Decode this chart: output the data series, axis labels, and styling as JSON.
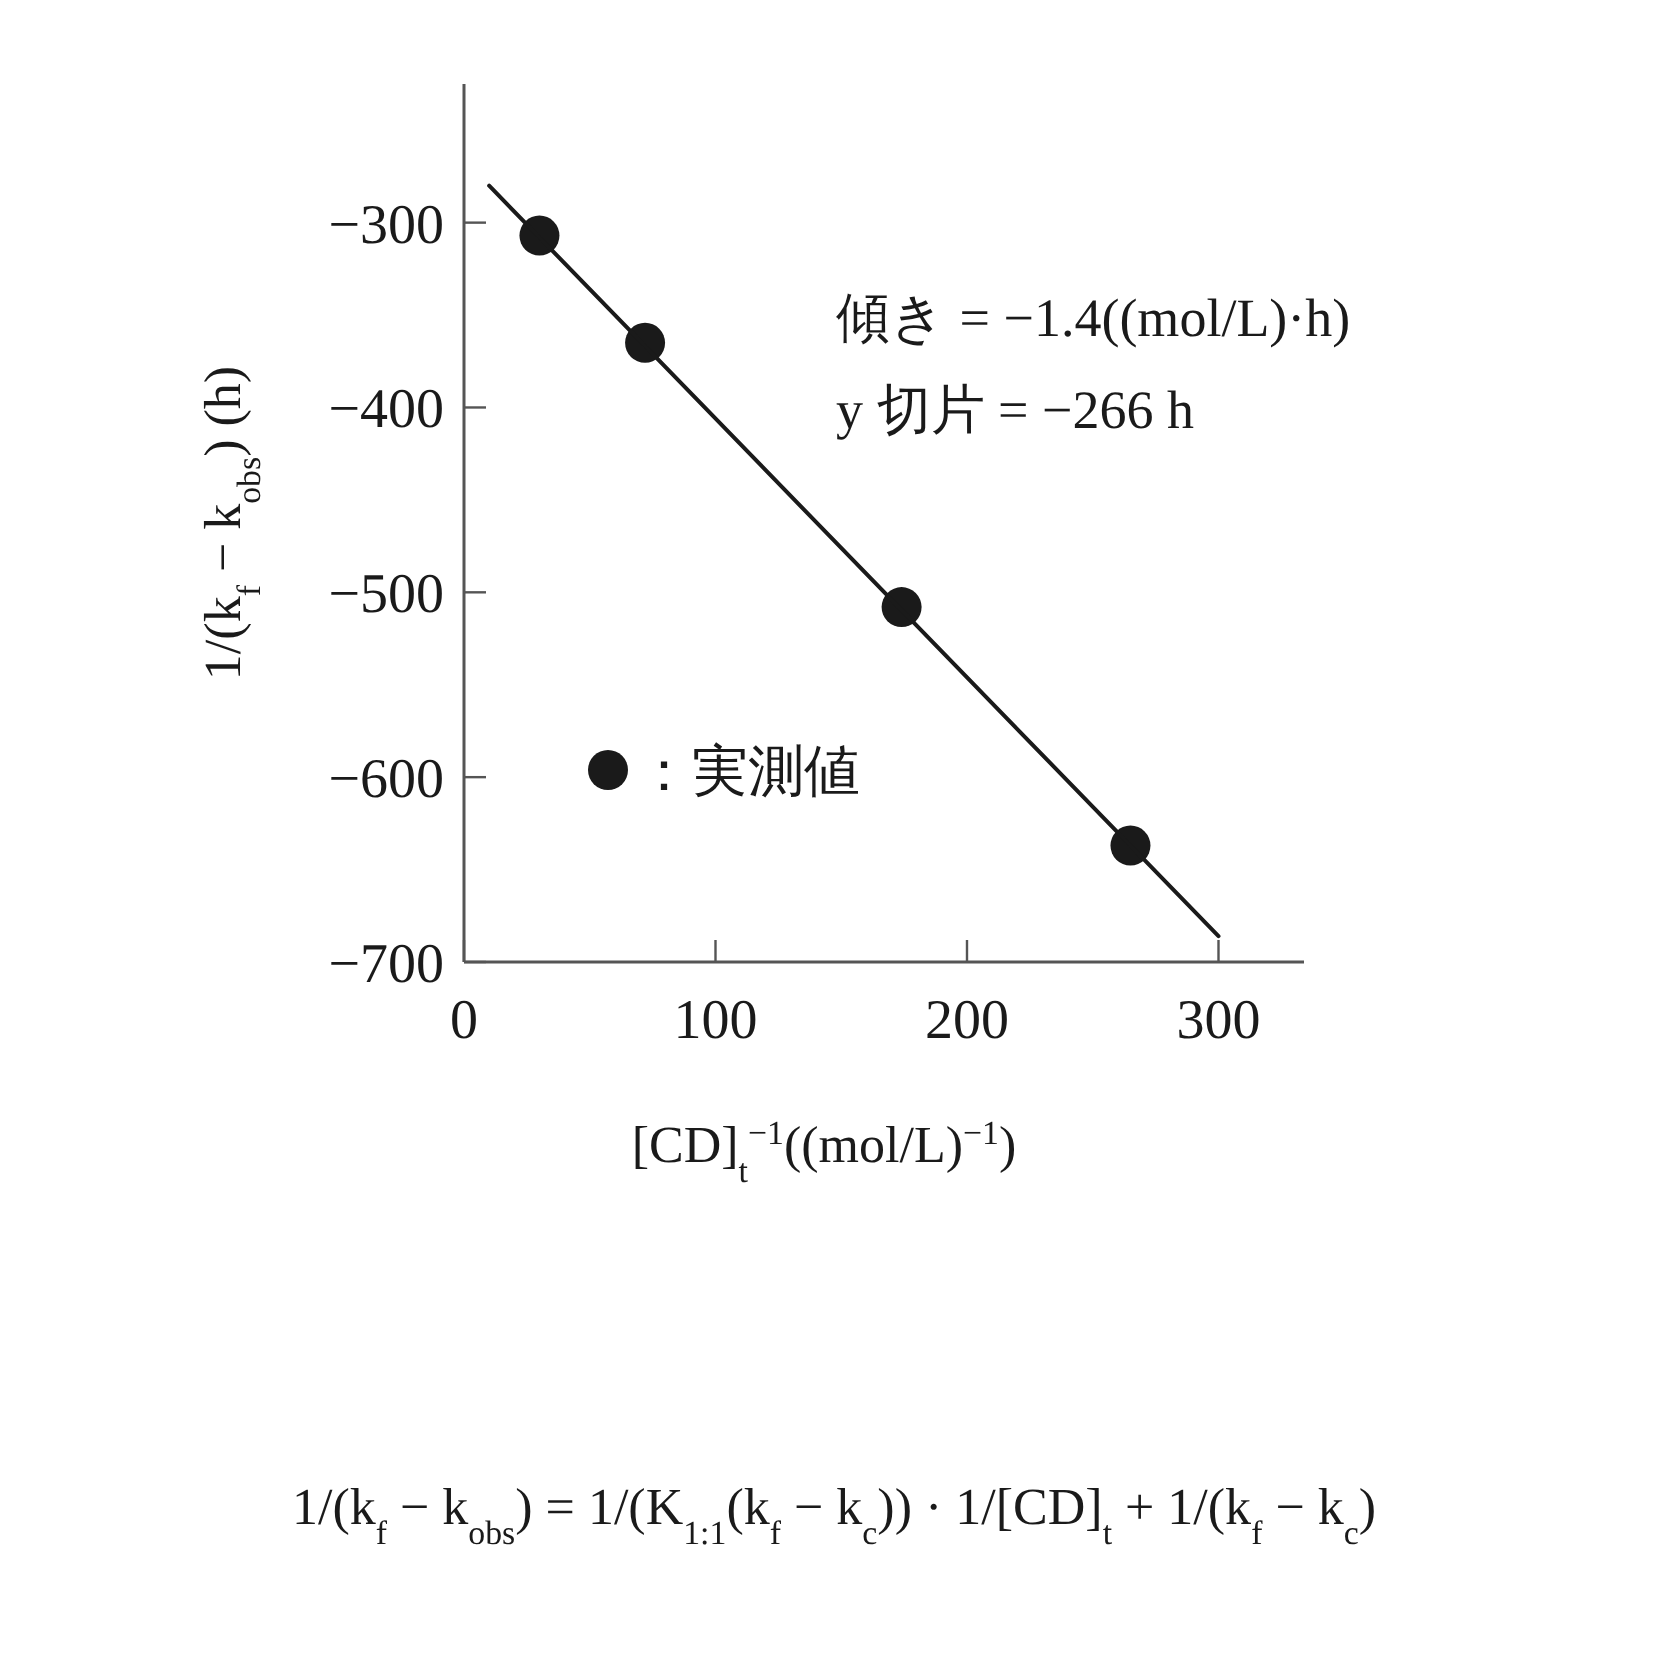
{
  "chart_data": {
    "type": "scatter",
    "xlabel": "[CD]$_{t}$$^{−1}$((mol/L)$^{−1}$)",
    "ylabel": "1/(k$_{f}$ − k$_{obs}$) (h)",
    "x": [
      30,
      72,
      174,
      265
    ],
    "series": [
      {
        "type": "scatter",
        "name": "：実測値",
        "color": "#1a1a1a",
        "marker": "circle",
        "values": [
          -307,
          -365,
          -508,
          -637
        ]
      },
      {
        "type": "line",
        "color": "#1a1a1a",
        "line_style": "solid",
        "marker": "none",
        "x": [
          10,
          300
        ],
        "values": [
          -280,
          -686
        ]
      }
    ],
    "xlim": [
      0,
      334
    ],
    "ylim": [
      -700,
      -225
    ],
    "xticks": [
      0,
      100,
      200,
      300
    ],
    "yticks": [
      -700,
      -600,
      -500,
      -400,
      -300
    ],
    "legend": "bottom left",
    "annotations": [
      "傾き = −1.4((mol/L)·h)",
      "y 切片 = −266 h",
      "1/(k$_{f}$ − k$_{obs}$) = 1/(K$_{1:1}$(k$_{f}$ − k$_{c}$)) · 1/[CD]$_{t}$ + 1/(k$_{f}$ − k$_{c}$)"
    ]
  }
}
